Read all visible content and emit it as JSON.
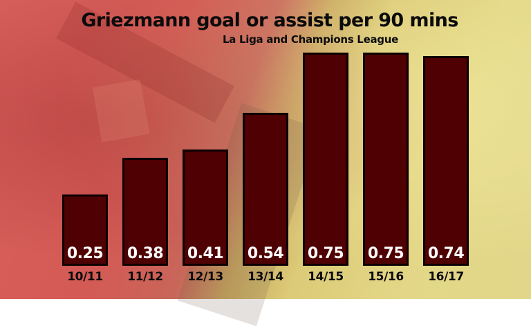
{
  "chart_data": {
    "type": "bar",
    "title": "Griezmann goal or assist per 90 mins",
    "subtitle": "La Liga and Champions League",
    "categories": [
      "10/11",
      "11/12",
      "12/13",
      "13/14",
      "14/15",
      "15/16",
      "16/17"
    ],
    "values": [
      0.25,
      0.38,
      0.41,
      0.54,
      0.75,
      0.75,
      0.74
    ],
    "value_labels": [
      "0.25",
      "0.38",
      "0.41",
      "0.54",
      "0.75",
      "0.75",
      "0.74"
    ],
    "xlabel": "",
    "ylabel": "",
    "ylim": [
      0,
      0.8
    ],
    "grid": false,
    "legend": null,
    "bar_color": "#4f0003",
    "bar_border_color": "#0d0000",
    "value_label_color": "#ffffff"
  }
}
